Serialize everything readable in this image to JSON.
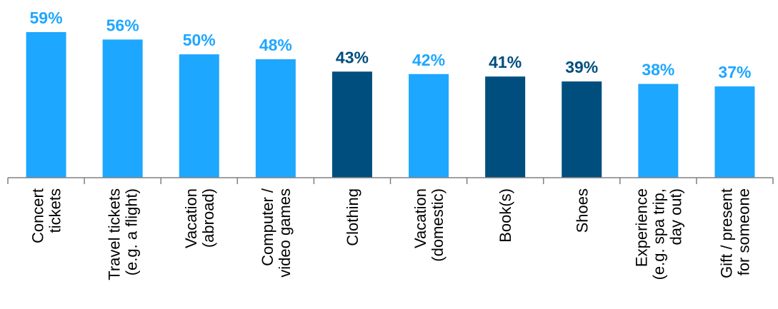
{
  "chart_data": {
    "type": "bar",
    "categories": [
      [
        "Concert",
        "tickets"
      ],
      [
        "Travel tickets",
        "(e.g. a flight)"
      ],
      [
        "Vacation",
        "(abroad)"
      ],
      [
        "Computer /",
        "video games"
      ],
      [
        "Clothing"
      ],
      [
        "Vacation",
        "(domestic)"
      ],
      [
        "Book(s)"
      ],
      [
        "Shoes"
      ],
      [
        "Experience",
        "(e.g. spa trip,",
        "day out)"
      ],
      [
        "Gift / present",
        "for someone"
      ]
    ],
    "values": [
      59,
      56,
      50,
      48,
      43,
      42,
      41,
      39,
      38,
      37
    ],
    "value_labels": [
      "59%",
      "56%",
      "50%",
      "48%",
      "43%",
      "42%",
      "41%",
      "39%",
      "38%",
      "37%"
    ],
    "bar_colors": [
      "#1EA7FF",
      "#1EA7FF",
      "#1EA7FF",
      "#1EA7FF",
      "#004E7E",
      "#1EA7FF",
      "#004E7E",
      "#004E7E",
      "#1EA7FF",
      "#1EA7FF"
    ],
    "ylim": [
      0,
      59
    ],
    "grid": false,
    "legend": "none"
  }
}
